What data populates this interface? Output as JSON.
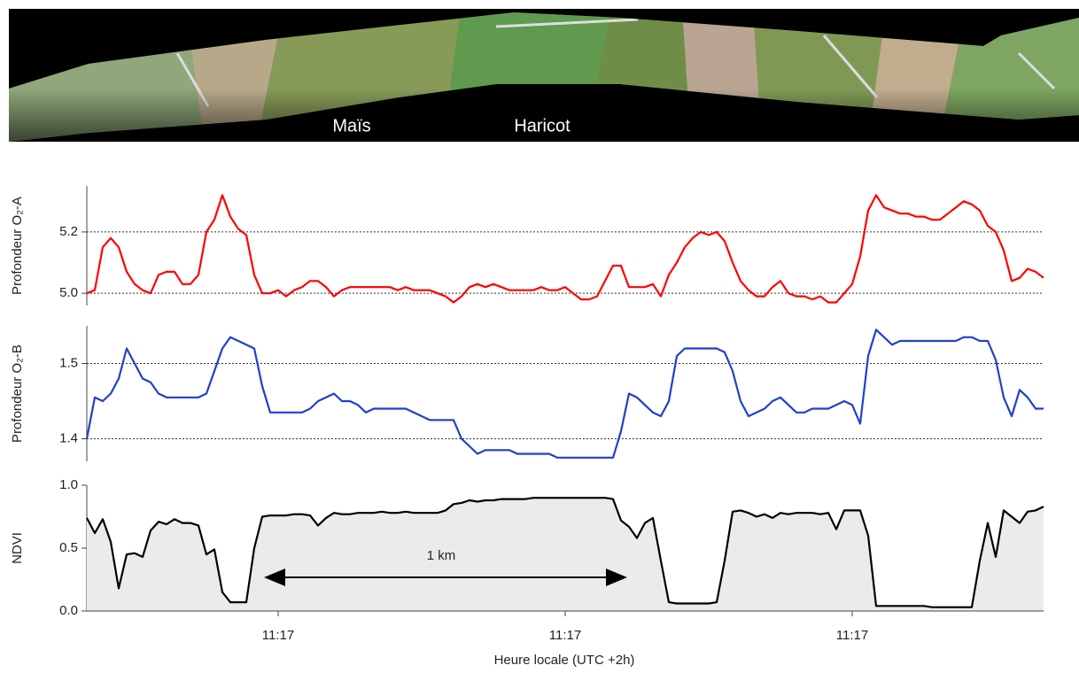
{
  "aerial_image": {
    "labels": [
      "Maïs",
      "Haricot"
    ]
  },
  "chart_data": [
    {
      "type": "line",
      "ylabel": "Profondeur O₂-A",
      "color": "#ff0000",
      "grid": true,
      "ylim": [
        4.96,
        5.35
      ],
      "yticks": [
        {
          "value": 5,
          "label": "5.0"
        },
        5.2
      ],
      "values": [
        5.0,
        5.01,
        5.15,
        5.18,
        5.15,
        5.07,
        5.03,
        5.01,
        5.0,
        5.06,
        5.07,
        5.07,
        5.03,
        5.03,
        5.06,
        5.2,
        5.24,
        5.32,
        5.25,
        5.21,
        5.19,
        5.06,
        5.0,
        5.0,
        5.01,
        4.99,
        5.01,
        5.02,
        5.04,
        5.04,
        5.02,
        4.99,
        5.01,
        5.02,
        5.02,
        5.02,
        5.02,
        5.02,
        5.02,
        5.01,
        5.02,
        5.01,
        5.01,
        5.01,
        5.0,
        4.99,
        4.97,
        4.99,
        5.02,
        5.03,
        5.02,
        5.03,
        5.02,
        5.01,
        5.01,
        5.01,
        5.01,
        5.02,
        5.01,
        5.01,
        5.02,
        5.0,
        4.98,
        4.98,
        4.99,
        5.04,
        5.09,
        5.09,
        5.02,
        5.02,
        5.02,
        5.03,
        4.99,
        5.06,
        5.1,
        5.15,
        5.18,
        5.2,
        5.19,
        5.2,
        5.17,
        5.1,
        5.04,
        5.01,
        4.99,
        4.99,
        5.02,
        5.04,
        5.0,
        4.99,
        4.99,
        4.98,
        4.99,
        4.97,
        4.97,
        5.0,
        5.03,
        5.12,
        5.27,
        5.32,
        5.28,
        5.27,
        5.26,
        5.26,
        5.25,
        5.25,
        5.24,
        5.24,
        5.26,
        5.28,
        5.3,
        5.29,
        5.27,
        5.22,
        5.2,
        5.14,
        5.04,
        5.05,
        5.08,
        5.07,
        5.05
      ]
    },
    {
      "type": "line",
      "ylabel": "Profondeur O₂-B",
      "color": "#1f3fd0",
      "grid": true,
      "ylim": [
        1.37,
        1.55
      ],
      "yticks": [
        1.4,
        1.5
      ],
      "values": [
        1.4,
        1.455,
        1.45,
        1.46,
        1.48,
        1.52,
        1.5,
        1.48,
        1.475,
        1.46,
        1.455,
        1.455,
        1.455,
        1.455,
        1.455,
        1.46,
        1.49,
        1.52,
        1.535,
        1.53,
        1.525,
        1.52,
        1.47,
        1.435,
        1.435,
        1.435,
        1.435,
        1.435,
        1.44,
        1.45,
        1.455,
        1.46,
        1.45,
        1.45,
        1.445,
        1.435,
        1.44,
        1.44,
        1.44,
        1.44,
        1.44,
        1.435,
        1.43,
        1.425,
        1.425,
        1.425,
        1.425,
        1.4,
        1.39,
        1.38,
        1.385,
        1.385,
        1.385,
        1.385,
        1.38,
        1.38,
        1.38,
        1.38,
        1.38,
        1.375,
        1.375,
        1.375,
        1.375,
        1.375,
        1.375,
        1.375,
        1.375,
        1.41,
        1.46,
        1.455,
        1.445,
        1.435,
        1.43,
        1.45,
        1.51,
        1.52,
        1.52,
        1.52,
        1.52,
        1.52,
        1.515,
        1.49,
        1.45,
        1.43,
        1.435,
        1.44,
        1.45,
        1.455,
        1.445,
        1.435,
        1.435,
        1.44,
        1.44,
        1.44,
        1.445,
        1.45,
        1.445,
        1.42,
        1.51,
        1.545,
        1.535,
        1.525,
        1.53,
        1.53,
        1.53,
        1.53,
        1.53,
        1.53,
        1.53,
        1.53,
        1.535,
        1.535,
        1.53,
        1.53,
        1.505,
        1.455,
        1.43,
        1.465,
        1.455,
        1.44,
        1.44
      ]
    },
    {
      "type": "area",
      "ylabel": "NDVI",
      "xlabel": "Heure locale (UTC +2h)",
      "color": "#000000",
      "fill_color": "#ebebeb",
      "grid": false,
      "ylim": [
        0,
        1
      ],
      "yticks": [
        {
          "value": 0,
          "label": "0.0"
        },
        0.5,
        {
          "value": 1,
          "label": "1.0"
        }
      ],
      "annotations": [
        {
          "text": "1 km"
        }
      ],
      "categories": [
        null,
        null,
        null,
        null,
        null,
        null,
        null,
        null,
        null,
        null,
        null,
        null,
        null,
        null,
        null,
        null,
        null,
        null,
        null,
        null,
        null,
        null,
        null,
        null,
        "11:17",
        null,
        null,
        null,
        null,
        null,
        null,
        null,
        null,
        null,
        null,
        null,
        null,
        null,
        null,
        null,
        null,
        null,
        null,
        null,
        null,
        null,
        null,
        null,
        null,
        null,
        null,
        null,
        null,
        null,
        null,
        null,
        null,
        null,
        null,
        null,
        "11:17",
        null,
        null,
        null,
        null,
        null,
        null,
        null,
        null,
        null,
        null,
        null,
        null,
        null,
        null,
        null,
        null,
        null,
        null,
        null,
        null,
        null,
        null,
        null,
        null,
        null,
        null,
        null,
        null,
        null,
        null,
        null,
        null,
        null,
        null,
        null,
        "11:17",
        null,
        null,
        null,
        null,
        null,
        null,
        null,
        null,
        null,
        null,
        null,
        null,
        null,
        null,
        null,
        null,
        null,
        null,
        null,
        null,
        null,
        null,
        null,
        null
      ],
      "values": [
        0.74,
        0.62,
        0.73,
        0.55,
        0.18,
        0.45,
        0.46,
        0.43,
        0.64,
        0.71,
        0.69,
        0.73,
        0.7,
        0.7,
        0.68,
        0.45,
        0.49,
        0.15,
        0.07,
        0.07,
        0.07,
        0.5,
        0.75,
        0.76,
        0.76,
        0.76,
        0.77,
        0.77,
        0.76,
        0.68,
        0.74,
        0.78,
        0.77,
        0.77,
        0.78,
        0.78,
        0.78,
        0.79,
        0.78,
        0.78,
        0.79,
        0.78,
        0.78,
        0.78,
        0.78,
        0.8,
        0.85,
        0.86,
        0.88,
        0.87,
        0.88,
        0.88,
        0.89,
        0.89,
        0.89,
        0.89,
        0.9,
        0.9,
        0.9,
        0.9,
        0.9,
        0.9,
        0.9,
        0.9,
        0.9,
        0.9,
        0.89,
        0.72,
        0.67,
        0.58,
        0.7,
        0.74,
        0.4,
        0.07,
        0.06,
        0.06,
        0.06,
        0.06,
        0.06,
        0.07,
        0.4,
        0.79,
        0.8,
        0.78,
        0.75,
        0.77,
        0.74,
        0.78,
        0.77,
        0.78,
        0.78,
        0.78,
        0.77,
        0.78,
        0.65,
        0.8,
        0.8,
        0.8,
        0.6,
        0.04,
        0.04,
        0.04,
        0.04,
        0.04,
        0.04,
        0.04,
        0.03,
        0.03,
        0.03,
        0.03,
        0.03,
        0.03,
        0.4,
        0.7,
        0.43,
        0.8,
        0.75,
        0.7,
        0.79,
        0.8,
        0.83
      ]
    }
  ]
}
